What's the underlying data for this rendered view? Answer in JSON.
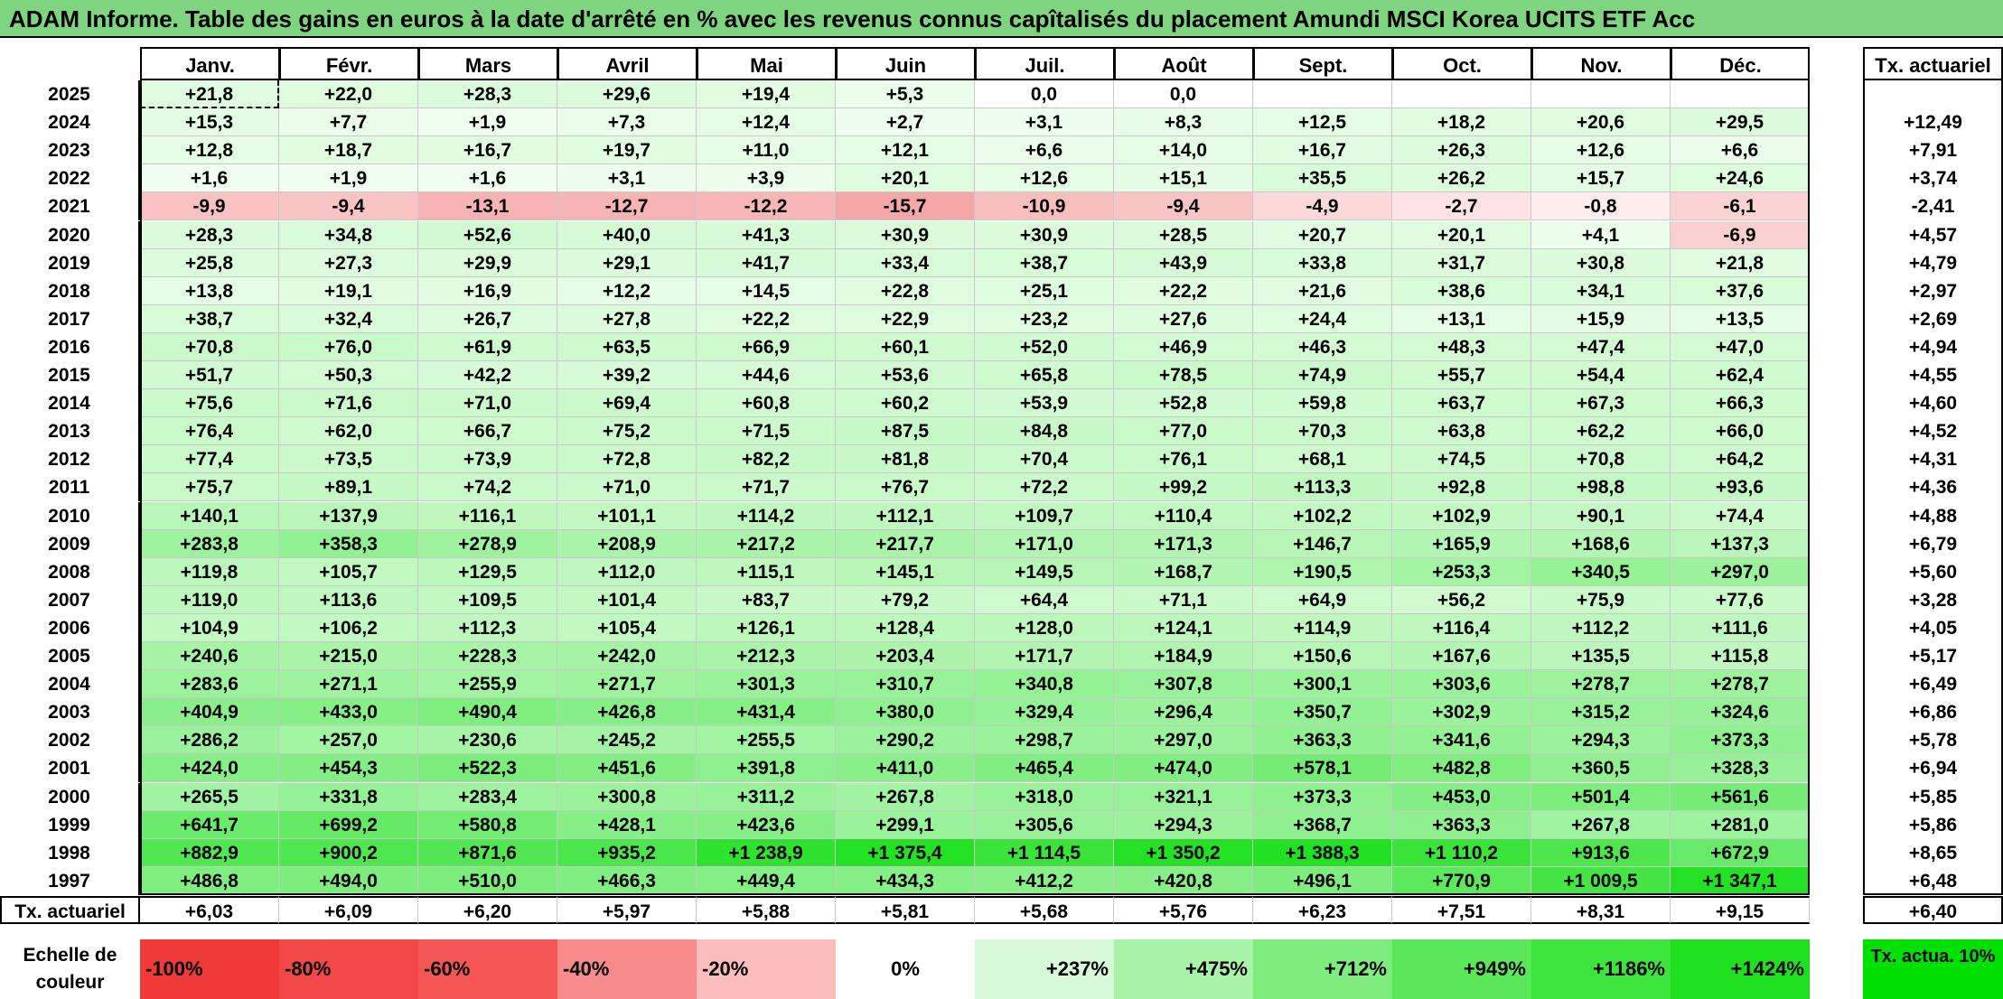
{
  "title": "ADAM Informe. Table des gains en euros à la date d'arrêté en % avec les revenus connus capîtalisés du placement Amundi MSCI Korea UCITS ETF Acc",
  "chart_data": {
    "type": "table",
    "months": [
      "Janv.",
      "Févr.",
      "Mars",
      "Avril",
      "Mai",
      "Juin",
      "Juil.",
      "Août",
      "Sept.",
      "Oct.",
      "Nov.",
      "Déc."
    ],
    "rate_header": "Tx. actuariel",
    "rows": [
      {
        "year": "2025",
        "values": [
          "+21,8",
          "+22,0",
          "+28,3",
          "+29,6",
          "+19,4",
          "+5,3",
          "0,0",
          "0,0",
          "",
          "",
          "",
          ""
        ],
        "rate": ""
      },
      {
        "year": "2024",
        "values": [
          "+15,3",
          "+7,7",
          "+1,9",
          "+7,3",
          "+12,4",
          "+2,7",
          "+3,1",
          "+8,3",
          "+12,5",
          "+18,2",
          "+20,6",
          "+29,5"
        ],
        "rate": "+12,49"
      },
      {
        "year": "2023",
        "values": [
          "+12,8",
          "+18,7",
          "+16,7",
          "+19,7",
          "+11,0",
          "+12,1",
          "+6,6",
          "+14,0",
          "+16,7",
          "+26,3",
          "+12,6",
          "+6,6"
        ],
        "rate": "+7,91"
      },
      {
        "year": "2022",
        "values": [
          "+1,6",
          "+1,9",
          "+1,6",
          "+3,1",
          "+3,9",
          "+20,1",
          "+12,6",
          "+15,1",
          "+35,5",
          "+26,2",
          "+15,7",
          "+24,6"
        ],
        "rate": "+3,74"
      },
      {
        "year": "2021",
        "values": [
          "-9,9",
          "-9,4",
          "-13,1",
          "-12,7",
          "-12,2",
          "-15,7",
          "-10,9",
          "-9,4",
          "-4,9",
          "-2,7",
          "-0,8",
          "-6,1"
        ],
        "rate": "-2,41"
      },
      {
        "year": "2020",
        "values": [
          "+28,3",
          "+34,8",
          "+52,6",
          "+40,0",
          "+41,3",
          "+30,9",
          "+30,9",
          "+28,5",
          "+20,7",
          "+20,1",
          "+4,1",
          "-6,9"
        ],
        "rate": "+4,57"
      },
      {
        "year": "2019",
        "values": [
          "+25,8",
          "+27,3",
          "+29,9",
          "+29,1",
          "+41,7",
          "+33,4",
          "+38,7",
          "+43,9",
          "+33,8",
          "+31,7",
          "+30,8",
          "+21,8"
        ],
        "rate": "+4,79"
      },
      {
        "year": "2018",
        "values": [
          "+13,8",
          "+19,1",
          "+16,9",
          "+12,2",
          "+14,5",
          "+22,8",
          "+25,1",
          "+22,2",
          "+21,6",
          "+38,6",
          "+34,1",
          "+37,6"
        ],
        "rate": "+2,97"
      },
      {
        "year": "2017",
        "values": [
          "+38,7",
          "+32,4",
          "+26,7",
          "+27,8",
          "+22,2",
          "+22,9",
          "+23,2",
          "+27,6",
          "+24,4",
          "+13,1",
          "+15,9",
          "+13,5"
        ],
        "rate": "+2,69"
      },
      {
        "year": "2016",
        "values": [
          "+70,8",
          "+76,0",
          "+61,9",
          "+63,5",
          "+66,9",
          "+60,1",
          "+52,0",
          "+46,9",
          "+46,3",
          "+48,3",
          "+47,4",
          "+47,0"
        ],
        "rate": "+4,94"
      },
      {
        "year": "2015",
        "values": [
          "+51,7",
          "+50,3",
          "+42,2",
          "+39,2",
          "+44,6",
          "+53,6",
          "+65,8",
          "+78,5",
          "+74,9",
          "+55,7",
          "+54,4",
          "+62,4"
        ],
        "rate": "+4,55"
      },
      {
        "year": "2014",
        "values": [
          "+75,6",
          "+71,6",
          "+71,0",
          "+69,4",
          "+60,8",
          "+60,2",
          "+53,9",
          "+52,8",
          "+59,8",
          "+63,7",
          "+67,3",
          "+66,3"
        ],
        "rate": "+4,60"
      },
      {
        "year": "2013",
        "values": [
          "+76,4",
          "+62,0",
          "+66,7",
          "+75,2",
          "+71,5",
          "+87,5",
          "+84,8",
          "+77,0",
          "+70,3",
          "+63,8",
          "+62,2",
          "+66,0"
        ],
        "rate": "+4,52"
      },
      {
        "year": "2012",
        "values": [
          "+77,4",
          "+73,5",
          "+73,9",
          "+72,8",
          "+82,2",
          "+81,8",
          "+70,4",
          "+76,1",
          "+68,1",
          "+74,5",
          "+70,8",
          "+64,2"
        ],
        "rate": "+4,31"
      },
      {
        "year": "2011",
        "values": [
          "+75,7",
          "+89,1",
          "+74,2",
          "+71,0",
          "+71,7",
          "+76,7",
          "+72,2",
          "+99,2",
          "+113,3",
          "+92,8",
          "+98,8",
          "+93,6"
        ],
        "rate": "+4,36"
      },
      {
        "year": "2010",
        "values": [
          "+140,1",
          "+137,9",
          "+116,1",
          "+101,1",
          "+114,2",
          "+112,1",
          "+109,7",
          "+110,4",
          "+102,2",
          "+102,9",
          "+90,1",
          "+74,4"
        ],
        "rate": "+4,88"
      },
      {
        "year": "2009",
        "values": [
          "+283,8",
          "+358,3",
          "+278,9",
          "+208,9",
          "+217,2",
          "+217,7",
          "+171,0",
          "+171,3",
          "+146,7",
          "+165,9",
          "+168,6",
          "+137,3"
        ],
        "rate": "+6,79"
      },
      {
        "year": "2008",
        "values": [
          "+119,8",
          "+105,7",
          "+129,5",
          "+112,0",
          "+115,1",
          "+145,1",
          "+149,5",
          "+168,7",
          "+190,5",
          "+253,3",
          "+340,5",
          "+297,0"
        ],
        "rate": "+5,60"
      },
      {
        "year": "2007",
        "values": [
          "+119,0",
          "+113,6",
          "+109,5",
          "+101,4",
          "+83,7",
          "+79,2",
          "+64,4",
          "+71,1",
          "+64,9",
          "+56,2",
          "+75,9",
          "+77,6"
        ],
        "rate": "+3,28"
      },
      {
        "year": "2006",
        "values": [
          "+104,9",
          "+106,2",
          "+112,3",
          "+105,4",
          "+126,1",
          "+128,4",
          "+128,0",
          "+124,1",
          "+114,9",
          "+116,4",
          "+112,2",
          "+111,6"
        ],
        "rate": "+4,05"
      },
      {
        "year": "2005",
        "values": [
          "+240,6",
          "+215,0",
          "+228,3",
          "+242,0",
          "+212,3",
          "+203,4",
          "+171,7",
          "+184,9",
          "+150,6",
          "+167,6",
          "+135,5",
          "+115,8"
        ],
        "rate": "+5,17"
      },
      {
        "year": "2004",
        "values": [
          "+283,6",
          "+271,1",
          "+255,9",
          "+271,7",
          "+301,3",
          "+310,7",
          "+340,8",
          "+307,8",
          "+300,1",
          "+303,6",
          "+278,7",
          "+278,7"
        ],
        "rate": "+6,49"
      },
      {
        "year": "2003",
        "values": [
          "+404,9",
          "+433,0",
          "+490,4",
          "+426,8",
          "+431,4",
          "+380,0",
          "+329,4",
          "+296,4",
          "+350,7",
          "+302,9",
          "+315,2",
          "+324,6"
        ],
        "rate": "+6,86"
      },
      {
        "year": "2002",
        "values": [
          "+286,2",
          "+257,0",
          "+230,6",
          "+245,2",
          "+255,5",
          "+290,2",
          "+298,7",
          "+297,0",
          "+363,3",
          "+341,6",
          "+294,3",
          "+373,3"
        ],
        "rate": "+5,78"
      },
      {
        "year": "2001",
        "values": [
          "+424,0",
          "+454,3",
          "+522,3",
          "+451,6",
          "+391,8",
          "+411,0",
          "+465,4",
          "+474,0",
          "+578,1",
          "+482,8",
          "+360,5",
          "+328,3"
        ],
        "rate": "+6,94"
      },
      {
        "year": "2000",
        "values": [
          "+265,5",
          "+331,8",
          "+283,4",
          "+300,8",
          "+311,2",
          "+267,8",
          "+318,0",
          "+321,1",
          "+373,3",
          "+453,0",
          "+501,4",
          "+561,6"
        ],
        "rate": "+5,85"
      },
      {
        "year": "1999",
        "values": [
          "+641,7",
          "+699,2",
          "+580,8",
          "+428,1",
          "+423,6",
          "+299,1",
          "+305,6",
          "+294,3",
          "+368,7",
          "+363,3",
          "+267,8",
          "+281,0"
        ],
        "rate": "+5,86"
      },
      {
        "year": "1998",
        "values": [
          "+882,9",
          "+900,2",
          "+871,6",
          "+935,2",
          "+1 238,9",
          "+1 375,4",
          "+1 114,5",
          "+1 350,2",
          "+1 388,3",
          "+1 110,2",
          "+913,6",
          "+672,9"
        ],
        "rate": "+8,65"
      },
      {
        "year": "1997",
        "values": [
          "+486,8",
          "+494,0",
          "+510,0",
          "+466,3",
          "+449,4",
          "+434,3",
          "+412,2",
          "+420,8",
          "+496,1",
          "+770,9",
          "+1 009,5",
          "+1 347,1"
        ],
        "rate": "+6,48"
      }
    ],
    "footer": {
      "label": "Tx. actuariel",
      "values": [
        "+6,03",
        "+6,09",
        "+6,20",
        "+5,97",
        "+5,88",
        "+5,81",
        "+5,68",
        "+5,76",
        "+6,23",
        "+7,51",
        "+8,31",
        "+9,15"
      ],
      "rate": "+6,40"
    },
    "scale": {
      "label": "Echelle de couleur",
      "items": [
        {
          "text": "-100%",
          "color": "#f03a3a"
        },
        {
          "text": "-80%",
          "color": "#f24848"
        },
        {
          "text": "-60%",
          "color": "#f45656"
        },
        {
          "text": "-40%",
          "color": "#f78a8a"
        },
        {
          "text": "-20%",
          "color": "#fbbcbc"
        },
        {
          "text": "0%",
          "color": "#ffffff"
        },
        {
          "text": "+237%",
          "color": "#d8fad8"
        },
        {
          "text": "+475%",
          "color": "#a9f3a9"
        },
        {
          "text": "+712%",
          "color": "#7eed7e"
        },
        {
          "text": "+949%",
          "color": "#5ae85a"
        },
        {
          "text": "+1186%",
          "color": "#3ce43c"
        },
        {
          "text": "+1424%",
          "color": "#1fe01f"
        }
      ],
      "rate_label": "Tx. actua. 10%",
      "rate_color": "#00e000"
    },
    "colors": {
      "negative_strong": "#f5a5a5",
      "negative_light": "#fff0f0",
      "positive_light": "#f5fff5",
      "positive_strong": "#1fe01f",
      "title_background": "#7fd47f"
    }
  }
}
